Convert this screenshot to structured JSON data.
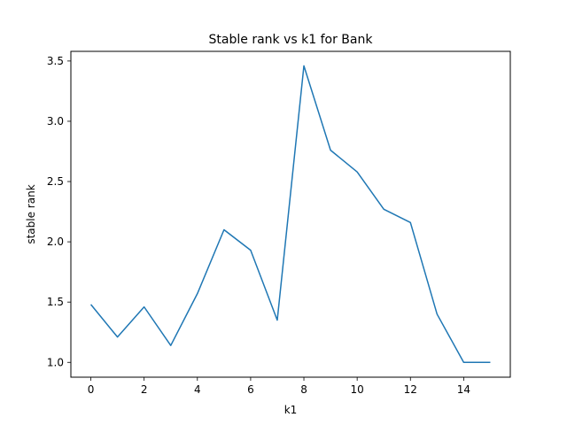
{
  "chart_data": {
    "type": "line",
    "title": "Stable rank vs k1 for Bank",
    "xlabel": "k1",
    "ylabel": "stable rank",
    "xlim": [
      -0.75,
      15.75
    ],
    "ylim": [
      0.877,
      3.58
    ],
    "xticks": [
      0,
      2,
      4,
      6,
      8,
      10,
      12,
      14
    ],
    "xtick_labels": [
      "0",
      "2",
      "4",
      "6",
      "8",
      "10",
      "12",
      "14"
    ],
    "yticks": [
      1.0,
      1.5,
      2.0,
      2.5,
      3.0,
      3.5
    ],
    "ytick_labels": [
      "1.0",
      "1.5",
      "2.0",
      "2.5",
      "3.0",
      "3.5"
    ],
    "grid": false,
    "series": [
      {
        "color": "#1f77b4",
        "x": [
          0,
          1,
          2,
          3,
          4,
          5,
          6,
          7,
          8,
          9,
          10,
          11,
          12,
          13,
          14,
          15
        ],
        "y": [
          1.48,
          1.21,
          1.46,
          1.14,
          1.57,
          2.1,
          1.93,
          1.35,
          3.46,
          2.76,
          2.58,
          2.27,
          2.16,
          1.4,
          1.0,
          1.0
        ]
      }
    ]
  }
}
